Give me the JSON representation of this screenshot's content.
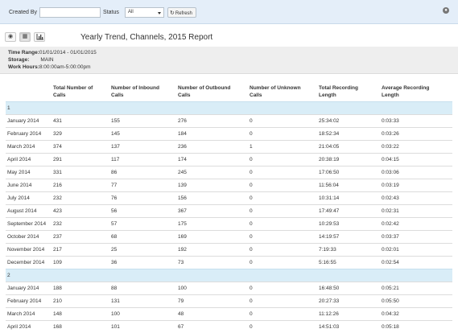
{
  "filters": {
    "created_by_label": "Created By",
    "created_by_value": "",
    "status_label": "Status",
    "status_value": "All",
    "refresh_label": "Refresh"
  },
  "report": {
    "title": "Yearly Trend, Channels, 2015 Report",
    "time_range_label": "Time Range:",
    "time_range_value": "01/01/2014 - 01/01/2015",
    "storage_label": "Storage:",
    "storage_value": "MAIN",
    "work_hours_label": "Work Hours:",
    "work_hours_value": "8:00:00am-5:00:00pm"
  },
  "table": {
    "columns": [
      "",
      "Total Number of Calls",
      "Number of Inbound Calls",
      "Number of Outbound Calls",
      "Number of Unknown Calls",
      "Total Recording Length",
      "Average Recording Length"
    ],
    "groups": [
      {
        "label": "1",
        "rows": [
          [
            "January 2014",
            "431",
            "155",
            "276",
            "0",
            "25:34:02",
            "0:03:33"
          ],
          [
            "February 2014",
            "329",
            "145",
            "184",
            "0",
            "18:52:34",
            "0:03:26"
          ],
          [
            "March 2014",
            "374",
            "137",
            "236",
            "1",
            "21:04:05",
            "0:03:22"
          ],
          [
            "April 2014",
            "291",
            "117",
            "174",
            "0",
            "20:38:19",
            "0:04:15"
          ],
          [
            "May 2014",
            "331",
            "86",
            "245",
            "0",
            "17:06:50",
            "0:03:06"
          ],
          [
            "June 2014",
            "216",
            "77",
            "139",
            "0",
            "11:56:04",
            "0:03:19"
          ],
          [
            "July 2014",
            "232",
            "76",
            "156",
            "0",
            "10:31:14",
            "0:02:43"
          ],
          [
            "August 2014",
            "423",
            "56",
            "367",
            "0",
            "17:49:47",
            "0:02:31"
          ],
          [
            "September 2014",
            "232",
            "57",
            "175",
            "0",
            "10:29:53",
            "0:02:42"
          ],
          [
            "October 2014",
            "237",
            "68",
            "169",
            "0",
            "14:19:57",
            "0:03:37"
          ],
          [
            "November 2014",
            "217",
            "25",
            "192",
            "0",
            "7:19:33",
            "0:02:01"
          ],
          [
            "December 2014",
            "109",
            "36",
            "73",
            "0",
            "5:16:55",
            "0:02:54"
          ]
        ]
      },
      {
        "label": "2",
        "rows": [
          [
            "January 2014",
            "188",
            "88",
            "100",
            "0",
            "16:48:50",
            "0:05:21"
          ],
          [
            "February 2014",
            "210",
            "131",
            "79",
            "0",
            "20:27:33",
            "0:05:50"
          ],
          [
            "March 2014",
            "148",
            "100",
            "48",
            "0",
            "11:12:26",
            "0:04:32"
          ],
          [
            "April 2014",
            "168",
            "101",
            "67",
            "0",
            "14:51:03",
            "0:05:18"
          ]
        ]
      }
    ]
  }
}
